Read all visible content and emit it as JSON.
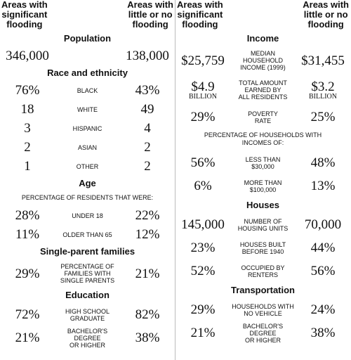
{
  "columns": [
    {
      "headers": [
        [
          "Areas with",
          "significant",
          "flooding"
        ],
        [
          "Areas with",
          "little or no",
          "flooding"
        ]
      ],
      "sections": [
        {
          "title": "Population",
          "rows": [
            {
              "a": "346,000",
              "b": "138,000"
            }
          ]
        },
        {
          "title": "Race and ethnicity",
          "rows": [
            {
              "a": "76%",
              "label": [
                "BLACK"
              ],
              "b": "43%"
            },
            {
              "a": "18",
              "label": [
                "WHITE"
              ],
              "b": "49"
            },
            {
              "a": "3",
              "label": [
                "HISPANIC"
              ],
              "b": "4"
            },
            {
              "a": "2",
              "label": [
                "ASIAN"
              ],
              "b": "2"
            },
            {
              "a": "1",
              "label": [
                "OTHER"
              ],
              "b": "2"
            }
          ]
        },
        {
          "title": "Age",
          "note": "PERCENTAGE OF RESIDENTS THAT WERE:",
          "rows": [
            {
              "a": "28%",
              "label": [
                "UNDER 18"
              ],
              "b": "22%"
            },
            {
              "a": "11%",
              "label": [
                "OLDER THAN 65"
              ],
              "b": "12%"
            }
          ]
        },
        {
          "title": "Single-parent families",
          "rows": [
            {
              "a": "29%",
              "label": [
                "PERCENTAGE OF",
                "FAMILIES WITH",
                "SINGLE PARENTS"
              ],
              "b": "21%"
            }
          ]
        },
        {
          "title": "Education",
          "rows": [
            {
              "a": "72%",
              "label": [
                "HIGH SCHOOL",
                "GRADUATE"
              ],
              "b": "82%"
            },
            {
              "a": "21%",
              "label": [
                "BACHELOR'S DEGREE",
                "OR HIGHER"
              ],
              "b": "38%"
            }
          ]
        }
      ]
    },
    {
      "headers": [
        [
          "Areas with",
          "significant",
          "flooding"
        ],
        [
          "Areas with",
          "little or no",
          "flooding"
        ]
      ],
      "sections": [
        {
          "title": "Income",
          "rows": [
            {
              "a": "$25,759",
              "label": [
                "MEDIAN",
                "HOUSEHOLD",
                "INCOME (1999)"
              ],
              "b": "$31,455"
            },
            {
              "a": "$4.9",
              "a_unit": "BILLION",
              "label": [
                "TOTAL AMOUNT",
                "EARNED BY",
                "ALL RESIDENTS"
              ],
              "b": "$3.2",
              "b_unit": "BILLION"
            },
            {
              "a": "29%",
              "label": [
                "POVERTY",
                "RATE"
              ],
              "b": "25%"
            }
          ]
        },
        {
          "note": "PERCENTAGE OF HOUSEHOLDS WITH INCOMES OF:",
          "rows": [
            {
              "a": "56%",
              "label": [
                "LESS THAN",
                "$30,000"
              ],
              "b": "48%"
            },
            {
              "a": "6%",
              "label": [
                "MORE THAN",
                "$100,000"
              ],
              "b": "13%"
            }
          ]
        },
        {
          "title": "Houses",
          "rows": [
            {
              "a": "145,000",
              "label": [
                "NUMBER OF",
                "HOUSING UNITS"
              ],
              "b": "70,000"
            },
            {
              "a": "23%",
              "label": [
                "HOUSES BUILT",
                "BEFORE 1940"
              ],
              "b": "44%"
            },
            {
              "a": "52%",
              "label": [
                "OCCUPIED BY",
                "RENTERS"
              ],
              "b": "56%"
            }
          ]
        },
        {
          "title": "Transportation",
          "rows": [
            {
              "a": "29%",
              "label": [
                "HOUSEHOLDS WITH",
                "NO VEHICLE"
              ],
              "b": "24%"
            },
            {
              "a": "21%",
              "label": [
                "BACHELOR'S DEGREE",
                "OR HIGHER"
              ],
              "b": "38%"
            }
          ]
        }
      ]
    }
  ]
}
